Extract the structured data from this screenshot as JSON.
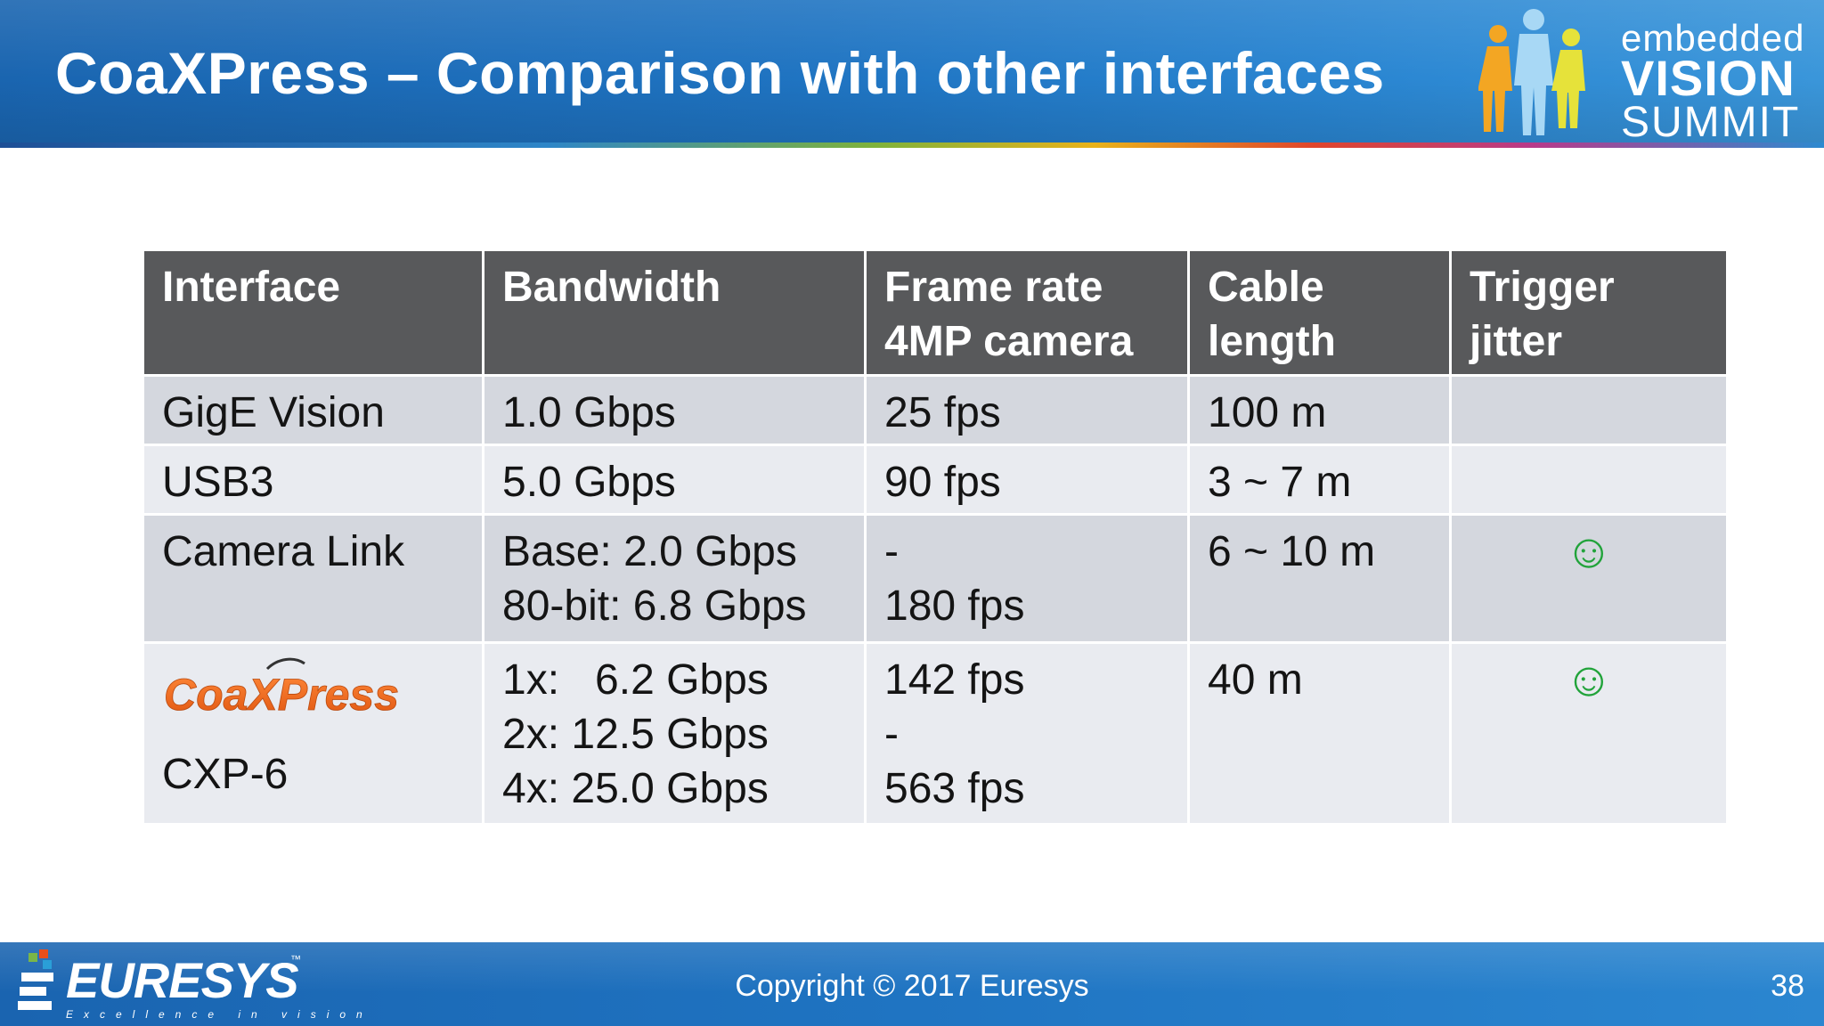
{
  "slide": {
    "title": "CoaXPress – Comparison with other interfaces",
    "page_number": "38"
  },
  "event_logo": {
    "embedded": "embedded",
    "vision": "VISION",
    "summit": "SUMMIT"
  },
  "table": {
    "headers": [
      {
        "line1": "Interface",
        "line2": ""
      },
      {
        "line1": "Bandwidth",
        "line2": ""
      },
      {
        "line1": "Frame rate",
        "line2": "4MP camera"
      },
      {
        "line1": "Cable",
        "line2": "length"
      },
      {
        "line1": "Trigger",
        "line2": "jitter"
      }
    ],
    "rows": [
      {
        "interface": [
          "GigE Vision"
        ],
        "bandwidth": [
          "1.0 Gbps"
        ],
        "frame_rate": [
          "25 fps"
        ],
        "cable_length": [
          "100 m"
        ],
        "trigger_jitter": ""
      },
      {
        "interface": [
          "USB3"
        ],
        "bandwidth": [
          "5.0 Gbps"
        ],
        "frame_rate": [
          "90 fps"
        ],
        "cable_length": [
          "3 ~ 7 m"
        ],
        "trigger_jitter": ""
      },
      {
        "interface": [
          "Camera Link"
        ],
        "bandwidth": [
          "Base: 2.0 Gbps",
          "80-bit: 6.8 Gbps"
        ],
        "frame_rate": [
          "-",
          "180 fps"
        ],
        "cable_length": [
          "6 ~ 10 m"
        ],
        "trigger_jitter": "☺"
      },
      {
        "interface_logo": "CoaXPress",
        "interface": [
          "CXP-6"
        ],
        "bandwidth": [
          "1x:   6.2 Gbps",
          "2x: 12.5 Gbps",
          "4x: 25.0 Gbps"
        ],
        "frame_rate": [
          "142 fps",
          "-",
          "563 fps"
        ],
        "cable_length": [
          "40 m"
        ],
        "trigger_jitter": "☺"
      }
    ]
  },
  "footer": {
    "copyright": "Copyright © 2017 Euresys",
    "company_logo": "EURESYS",
    "company_tm": "™",
    "tagline": "Excellence in vision"
  },
  "colors": {
    "header_blue": "#1f74c2",
    "table_header": "#58595b",
    "row_dark": "#d4d7de",
    "row_light": "#e9ebf0",
    "smiley_green": "#21a33a",
    "coaxpress_orange": "#f06a1e"
  }
}
